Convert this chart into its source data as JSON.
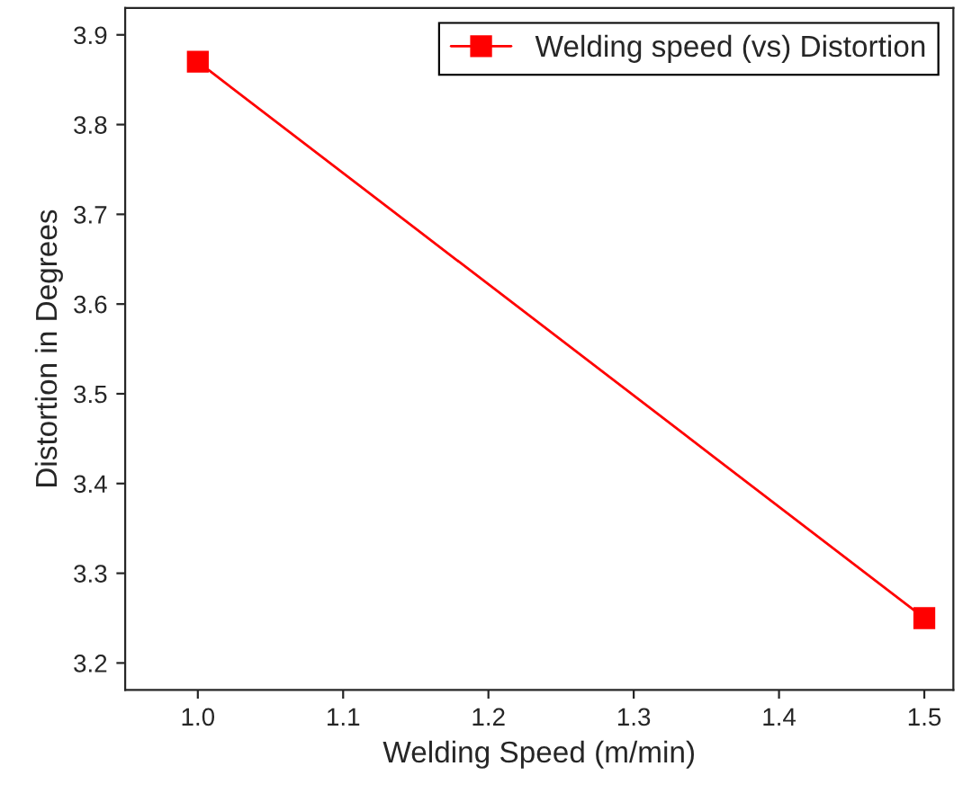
{
  "chart_data": {
    "type": "line",
    "xlabel": "Welding Speed (m/min)",
    "ylabel": "Distortion in Degrees",
    "x": [
      1.0,
      1.5
    ],
    "series": [
      {
        "name": "Welding speed (vs) Distortion",
        "color": "#ff0000",
        "values": [
          3.87,
          3.25
        ]
      }
    ],
    "xlim": [
      0.95,
      1.52
    ],
    "xticks": [
      {
        "value": 1.0,
        "label": "1.0"
      },
      1.1,
      1.2,
      1.3,
      1.4,
      1.5
    ],
    "ylim": [
      3.17,
      3.93
    ],
    "yticks": [
      3.2,
      3.3,
      3.4,
      3.5,
      3.6,
      3.7,
      3.8,
      3.9
    ],
    "marker": "square",
    "line_style": "solid",
    "grid": false,
    "legend": "top right"
  }
}
